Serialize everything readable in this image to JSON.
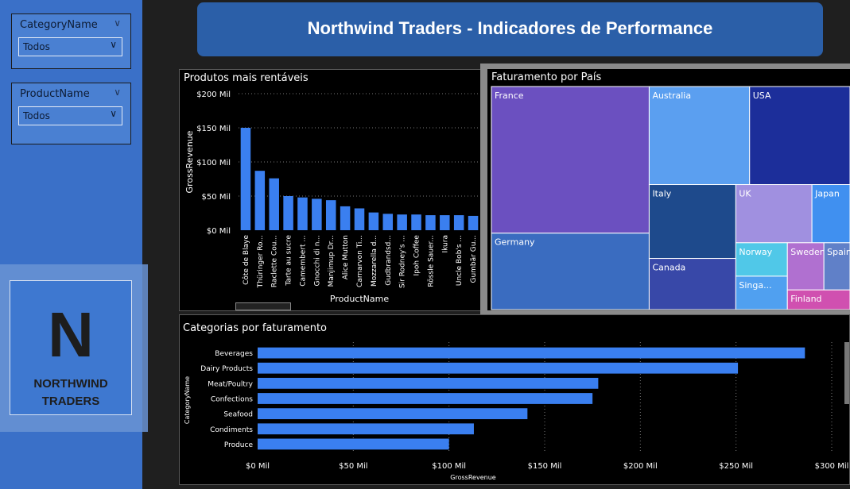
{
  "filters": {
    "category": {
      "title": "CategoryName",
      "value": "Todos"
    },
    "product": {
      "title": "ProductName",
      "value": "Todos"
    }
  },
  "logo": {
    "letter": "N",
    "line1": "NORTHWIND",
    "line2": "TRADERS"
  },
  "banner": {
    "title": "Northwind Traders - Indicadores de Performance"
  },
  "chart_data": [
    {
      "type": "bar",
      "title": "Produtos mais rentáveis",
      "xlabel": "ProductName",
      "ylabel": "GrossRevenue",
      "ylim": [
        0,
        200
      ],
      "yticks": [
        "$0 Mil",
        "$50 Mil",
        "$100 Mil",
        "$150 Mil",
        "$200 Mil"
      ],
      "categories": [
        "Côte de Blaye",
        "Thüringer Ro...",
        "Raclette Cou...",
        "Tarte au sucre",
        "Camembert ...",
        "Gnocchi di n...",
        "Manjimup Dr...",
        "Alice Mutton",
        "Carnarvon Ti...",
        "Mozzarella d...",
        "Gudbrandsd...",
        "Sir Rodney's ...",
        "Ipoh Coffee",
        "Rössle Sauer...",
        "Ikura",
        "Uncle Bob's ...",
        "Gumbär Gu..."
      ],
      "values": [
        150,
        87,
        76,
        50,
        48,
        46,
        44,
        35,
        32,
        26,
        24,
        23,
        23,
        22,
        22,
        22,
        21
      ],
      "color": "#3a7ff0"
    },
    {
      "type": "treemap",
      "title": "Faturamento por País",
      "labels": [
        "France",
        "Germany",
        "Australia",
        "USA",
        "Italy",
        "Canada",
        "UK",
        "Japan",
        "Norway",
        "Singa...",
        "Sweden",
        "Spain",
        "Finland"
      ],
      "values": [
        94,
        49,
        40,
        40,
        26,
        18,
        18,
        9,
        7,
        7,
        7,
        5,
        5
      ],
      "colors": {
        "France": "#6b50c0",
        "Germany": "#3a6cc0",
        "Australia": "#5b9ff0",
        "USA": "#1c2e9a",
        "Italy": "#1e4a8c",
        "Canada": "#3848a8",
        "UK": "#a090e0",
        "Japan": "#4090f0",
        "Norway": "#50c8e8",
        "Singa...": "#50a0f0",
        "Sweden": "#b070d0",
        "Spain": "#6080c8",
        "Finland": "#d050b0"
      }
    },
    {
      "type": "bar",
      "orientation": "horizontal",
      "title": "Categorias por faturamento",
      "xlabel": "GrossRevenue",
      "ylabel": "CategoryName",
      "xlim": [
        0,
        300
      ],
      "xticks": [
        "$0 Mil",
        "$50 Mil",
        "$100 Mil",
        "$150 Mil",
        "$200 Mil",
        "$250 Mil",
        "$300 Mil"
      ],
      "categories": [
        "Beverages",
        "Dairy Products",
        "Meat/Poultry",
        "Confections",
        "Seafood",
        "Condiments",
        "Produce"
      ],
      "values": [
        286,
        251,
        178,
        175,
        141,
        113,
        100
      ],
      "color": "#3a7ff0"
    }
  ]
}
